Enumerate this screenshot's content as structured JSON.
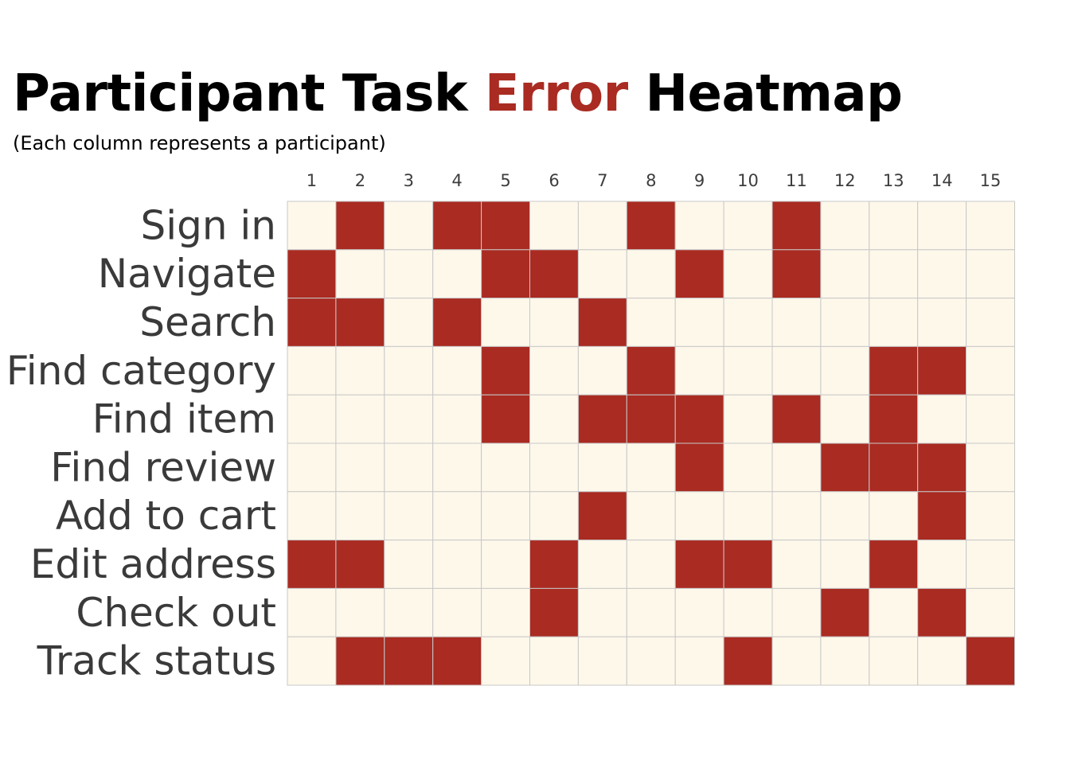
{
  "title": {
    "part1": "Participant Task",
    "highlight": "Error",
    "part2": "Heatmap"
  },
  "subtitle": "(Each column represents a participant)",
  "colors": {
    "error": "#a92b22",
    "no_error": "#fef8eb",
    "grid": "#c8c8c8",
    "title_highlight": "#a92b22"
  },
  "chart_data": {
    "type": "heatmap",
    "x": [
      "1",
      "2",
      "3",
      "4",
      "5",
      "6",
      "7",
      "8",
      "9",
      "10",
      "11",
      "12",
      "13",
      "14",
      "15"
    ],
    "y": [
      "Sign in",
      "Navigate",
      "Search",
      "Find category",
      "Find item",
      "Find review",
      "Add to cart",
      "Edit address",
      "Check out",
      "Track status"
    ],
    "values": [
      [
        0,
        1,
        0,
        1,
        1,
        0,
        0,
        1,
        0,
        0,
        1,
        0,
        0,
        0,
        0
      ],
      [
        1,
        0,
        0,
        0,
        1,
        1,
        0,
        0,
        1,
        0,
        1,
        0,
        0,
        0,
        0
      ],
      [
        1,
        1,
        0,
        1,
        0,
        0,
        1,
        0,
        0,
        0,
        0,
        0,
        0,
        0,
        0
      ],
      [
        0,
        0,
        0,
        0,
        1,
        0,
        0,
        1,
        0,
        0,
        0,
        0,
        1,
        1,
        0
      ],
      [
        0,
        0,
        0,
        0,
        1,
        0,
        1,
        1,
        1,
        0,
        1,
        0,
        1,
        0,
        0
      ],
      [
        0,
        0,
        0,
        0,
        0,
        0,
        0,
        0,
        1,
        0,
        0,
        1,
        1,
        1,
        0
      ],
      [
        0,
        0,
        0,
        0,
        0,
        0,
        1,
        0,
        0,
        0,
        0,
        0,
        0,
        1,
        0
      ],
      [
        1,
        1,
        0,
        0,
        0,
        1,
        0,
        0,
        1,
        1,
        0,
        0,
        1,
        0,
        0
      ],
      [
        0,
        0,
        0,
        0,
        0,
        1,
        0,
        0,
        0,
        0,
        0,
        1,
        0,
        1,
        0
      ],
      [
        0,
        1,
        1,
        1,
        0,
        0,
        0,
        0,
        0,
        1,
        0,
        0,
        0,
        0,
        1
      ]
    ],
    "legend": "none",
    "grid": true
  }
}
